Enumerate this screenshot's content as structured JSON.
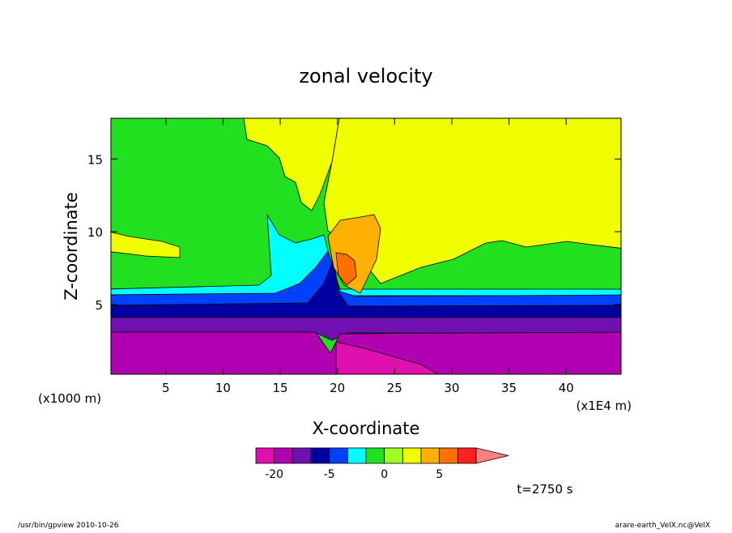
{
  "chart_data": {
    "type": "contour",
    "title": "zonal velocity",
    "xlabel": "X-coordinate",
    "ylabel": "Z-coordinate",
    "x_unit": "(x1E4 m)",
    "y_unit": "(x1000 m)",
    "xlim": [
      0.2,
      44.8
    ],
    "xticks": [
      5,
      10,
      15,
      20,
      25,
      30,
      35,
      40
    ],
    "ylim": [
      0.2,
      17.8
    ],
    "yticks": [
      5,
      10,
      15
    ],
    "colorbar": {
      "levels": [
        -20,
        -15,
        -10,
        -5,
        -2,
        -1,
        0,
        1,
        2,
        5,
        10,
        20
      ],
      "colors": [
        "#e010b0",
        "#b000b0",
        "#7010b0",
        "#0000a0",
        "#0040ff",
        "#00ffff",
        "#20e020",
        "#a0ff20",
        "#f0ff00",
        "#ffb000",
        "#ff7000",
        "#ff2020",
        "#ff8080"
      ],
      "ticks": [
        -20,
        -5,
        0,
        5
      ]
    },
    "time_label": "t=2750 s",
    "footer_left": "/usr/bin/gpview   2010-10-26",
    "footer_right": "arare-earth_VelX.nc@VelX"
  }
}
